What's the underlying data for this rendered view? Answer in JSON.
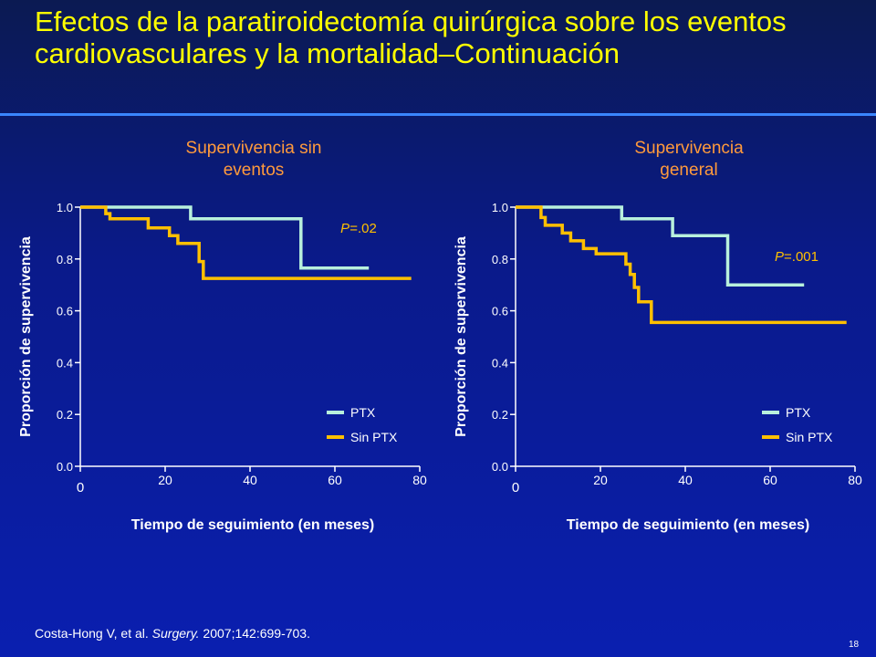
{
  "title": "Efectos de la paratiroidectomía quirúrgica sobre los eventos cardiovasculares y la mortalidad–Continuación",
  "footnote": {
    "authors": "Costa-Hong V, et al. ",
    "journal": "Surgery.",
    "rest": " 2007;142:699-703."
  },
  "slide_number": "18",
  "colors": {
    "ptx": "#b8f0dc",
    "sin_ptx": "#ffc000",
    "title": "#ffff00",
    "subtitle": "#ff9a3c"
  },
  "chart_data": [
    {
      "type": "line",
      "step": true,
      "title": "Supervivencia sin eventos",
      "xlabel": "Tiempo de seguimiento (en meses)",
      "ylabel": "Proporción de supervivencia",
      "xlim": [
        0,
        80
      ],
      "ylim": [
        0,
        1
      ],
      "xticks": [
        "0",
        "20",
        "40",
        "60",
        "80"
      ],
      "yticks": [
        "0.0",
        "0.2",
        "0.4",
        "0.6",
        "0.8",
        "1.0"
      ],
      "annotation": {
        "p": "P",
        "rest": "=.02"
      },
      "series": [
        {
          "name": "PTX",
          "color": "#b8f0dc",
          "points": [
            [
              0,
              1.0
            ],
            [
              26,
              1.0
            ],
            [
              26,
              0.955
            ],
            [
              52,
              0.955
            ],
            [
              52,
              0.765
            ],
            [
              68,
              0.765
            ]
          ]
        },
        {
          "name": "Sin PTX",
          "color": "#ffc000",
          "points": [
            [
              0,
              1.0
            ],
            [
              6,
              1.0
            ],
            [
              6,
              0.975
            ],
            [
              7,
              0.975
            ],
            [
              7,
              0.955
            ],
            [
              16,
              0.955
            ],
            [
              16,
              0.92
            ],
            [
              21,
              0.92
            ],
            [
              21,
              0.89
            ],
            [
              23,
              0.89
            ],
            [
              23,
              0.86
            ],
            [
              28,
              0.86
            ],
            [
              28,
              0.79
            ],
            [
              29,
              0.79
            ],
            [
              29,
              0.725
            ],
            [
              78,
              0.725
            ]
          ]
        }
      ]
    },
    {
      "type": "line",
      "step": true,
      "title": "Supervivencia general",
      "xlabel": "Tiempo de seguimiento (en meses)",
      "ylabel": "Proporción de supervivencia",
      "xlim": [
        0,
        80
      ],
      "ylim": [
        0,
        1
      ],
      "xticks": [
        "0",
        "20",
        "40",
        "60",
        "80"
      ],
      "yticks": [
        "0.0",
        "0.2",
        "0.4",
        "0.6",
        "0.8",
        "1.0"
      ],
      "annotation": {
        "p": "P",
        "rest": "=.001"
      },
      "series": [
        {
          "name": "PTX",
          "color": "#b8f0dc",
          "points": [
            [
              0,
              1.0
            ],
            [
              25,
              1.0
            ],
            [
              25,
              0.955
            ],
            [
              37,
              0.955
            ],
            [
              37,
              0.89
            ],
            [
              50,
              0.89
            ],
            [
              50,
              0.7
            ],
            [
              68,
              0.7
            ]
          ]
        },
        {
          "name": "Sin PTX",
          "color": "#ffc000",
          "points": [
            [
              0,
              1.0
            ],
            [
              6,
              1.0
            ],
            [
              6,
              0.96
            ],
            [
              7,
              0.96
            ],
            [
              7,
              0.93
            ],
            [
              11,
              0.93
            ],
            [
              11,
              0.9
            ],
            [
              13,
              0.9
            ],
            [
              13,
              0.87
            ],
            [
              16,
              0.87
            ],
            [
              16,
              0.84
            ],
            [
              19,
              0.84
            ],
            [
              19,
              0.82
            ],
            [
              26,
              0.82
            ],
            [
              26,
              0.78
            ],
            [
              27,
              0.78
            ],
            [
              27,
              0.74
            ],
            [
              28,
              0.74
            ],
            [
              28,
              0.69
            ],
            [
              29,
              0.69
            ],
            [
              29,
              0.635
            ],
            [
              32,
              0.635
            ],
            [
              32,
              0.555
            ],
            [
              78,
              0.555
            ]
          ]
        }
      ]
    }
  ]
}
